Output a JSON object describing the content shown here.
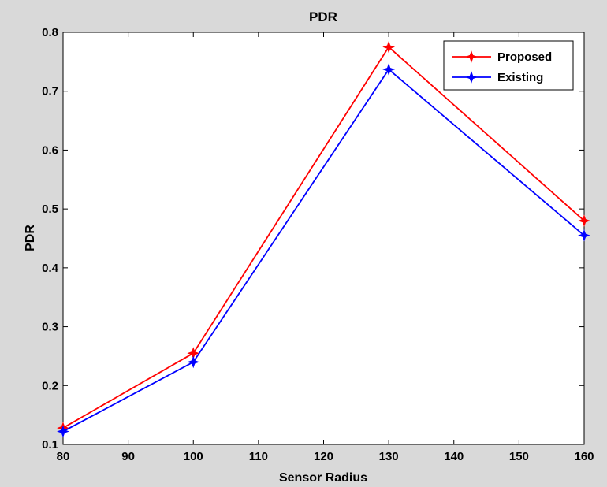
{
  "chart_data": {
    "type": "line",
    "title": "PDR",
    "xlabel": "Sensor Radius",
    "ylabel": "PDR",
    "xlim": [
      80,
      160
    ],
    "ylim": [
      0.1,
      0.8
    ],
    "xticks": [
      80,
      90,
      100,
      110,
      120,
      130,
      140,
      150,
      160
    ],
    "yticks": [
      0.1,
      0.2,
      0.3,
      0.4,
      0.5,
      0.6,
      0.7,
      0.8
    ],
    "x": [
      80,
      100,
      130,
      160
    ],
    "series": [
      {
        "name": "Proposed",
        "color": "#ff0000",
        "marker": "star",
        "values": [
          0.128,
          0.255,
          0.775,
          0.48
        ]
      },
      {
        "name": "Existing",
        "color": "#0000ff",
        "marker": "star",
        "values": [
          0.122,
          0.24,
          0.737,
          0.455
        ]
      }
    ],
    "legend": "top-right",
    "grid": false
  }
}
